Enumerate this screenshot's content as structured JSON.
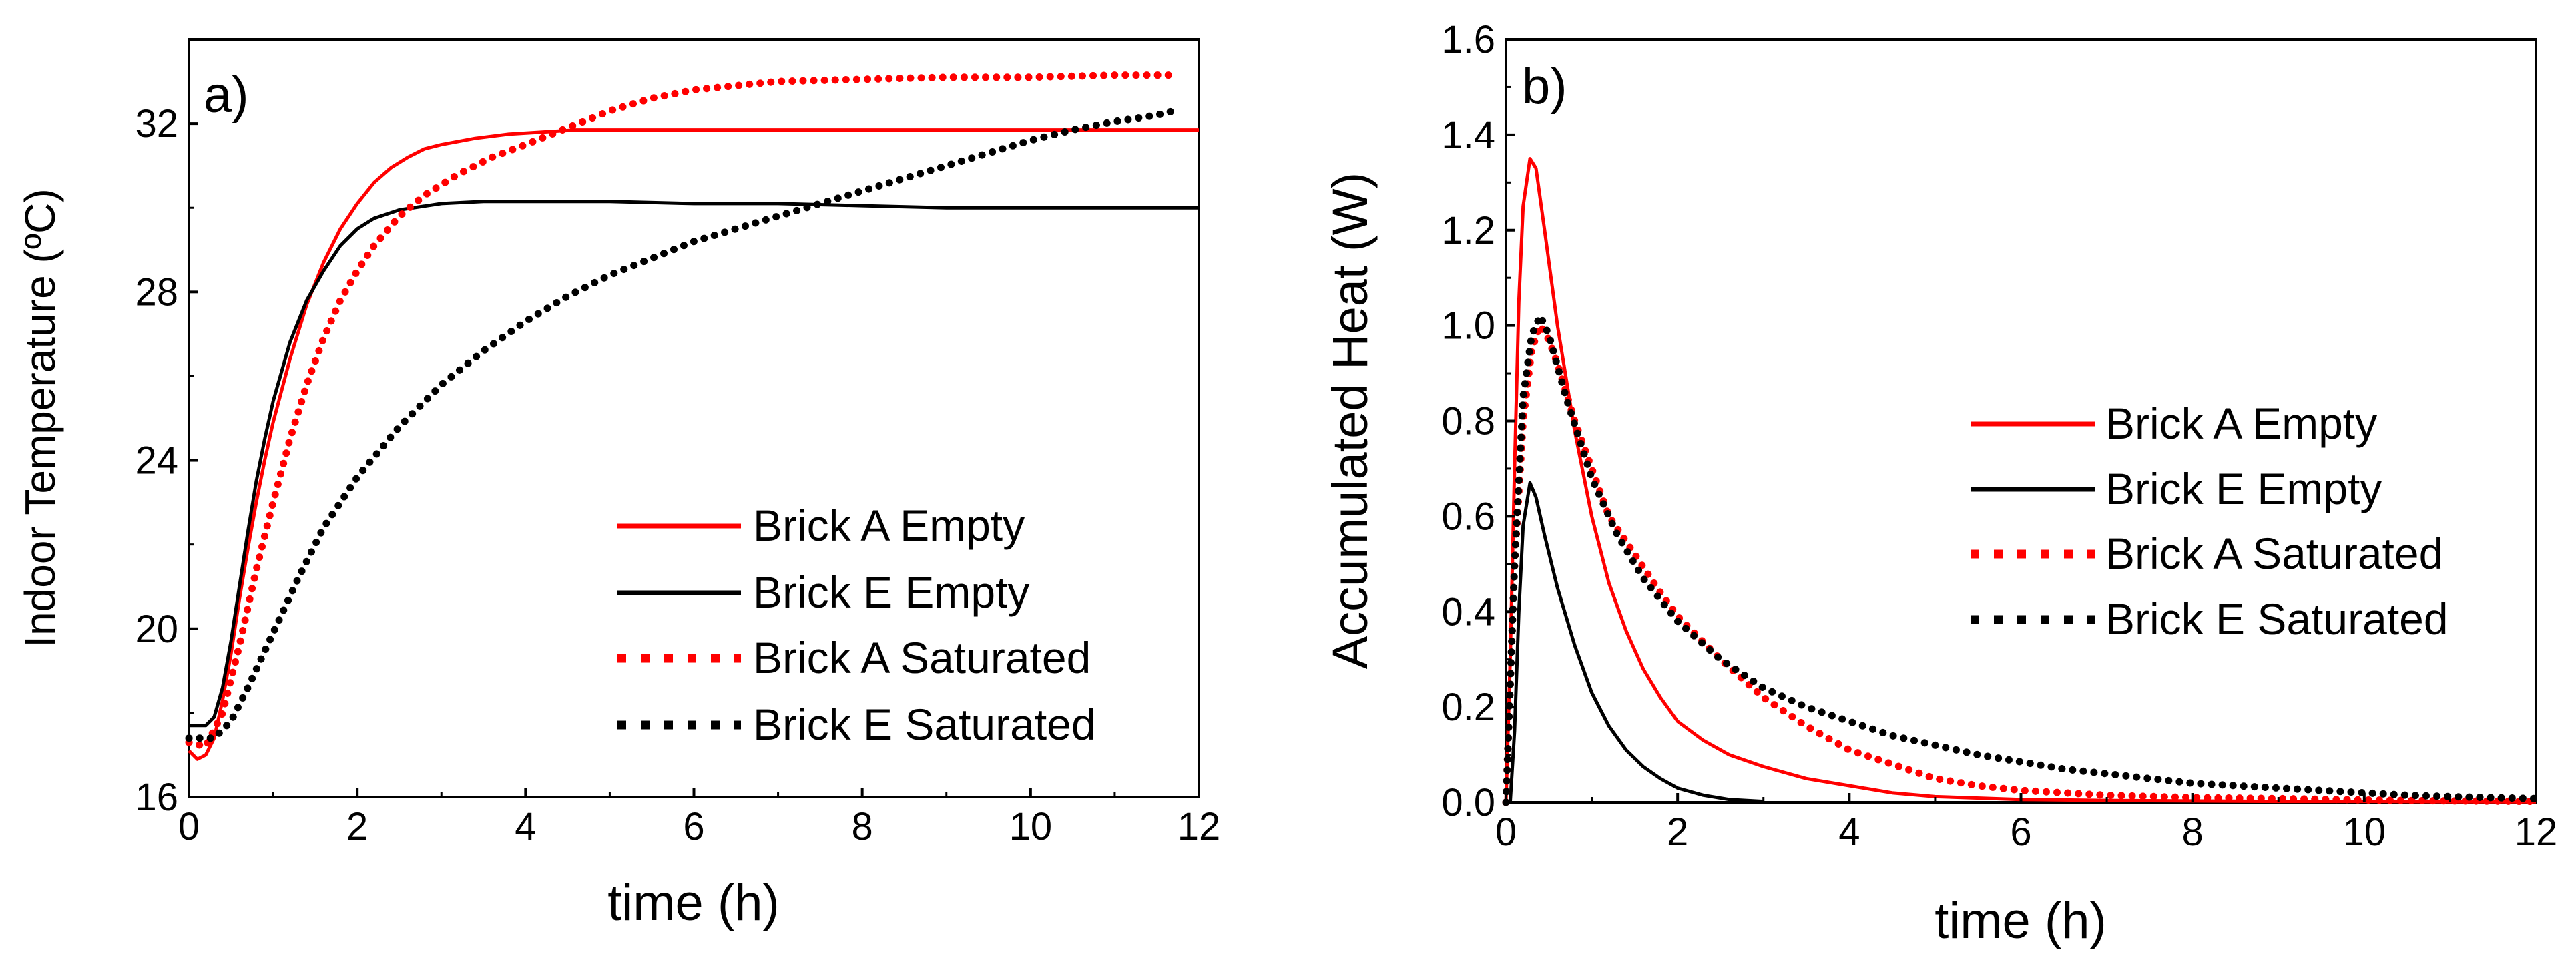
{
  "chart_data": [
    {
      "type": "line",
      "panel_label": "a)",
      "xlabel": "time (h)",
      "ylabel": "Indoor Temperature (ºC)",
      "xlim": [
        0,
        12
      ],
      "ylim": [
        16,
        34
      ],
      "xticks": [
        0,
        2,
        4,
        6,
        8,
        10,
        12
      ],
      "yticks": [
        16,
        20,
        24,
        28,
        32
      ],
      "grid": false,
      "legend_position": "bottom-right",
      "series": [
        {
          "name": "Brick A Empty",
          "color": "#ff0000",
          "style": "solid",
          "points": [
            [
              0,
              17.1
            ],
            [
              0.1,
              16.9
            ],
            [
              0.2,
              17.0
            ],
            [
              0.3,
              17.4
            ],
            [
              0.4,
              18.3
            ],
            [
              0.5,
              19.4
            ],
            [
              0.6,
              20.7
            ],
            [
              0.7,
              21.9
            ],
            [
              0.8,
              23.0
            ],
            [
              0.9,
              24.0
            ],
            [
              1.0,
              24.9
            ],
            [
              1.2,
              26.4
            ],
            [
              1.4,
              27.7
            ],
            [
              1.6,
              28.7
            ],
            [
              1.8,
              29.5
            ],
            [
              2.0,
              30.1
            ],
            [
              2.2,
              30.6
            ],
            [
              2.4,
              30.95
            ],
            [
              2.6,
              31.2
            ],
            [
              2.8,
              31.4
            ],
            [
              3.0,
              31.5
            ],
            [
              3.4,
              31.65
            ],
            [
              3.8,
              31.75
            ],
            [
              4.2,
              31.8
            ],
            [
              4.6,
              31.85
            ],
            [
              5.0,
              31.85
            ],
            [
              6.0,
              31.85
            ],
            [
              7.0,
              31.85
            ],
            [
              8.0,
              31.85
            ],
            [
              9.0,
              31.85
            ],
            [
              10.0,
              31.85
            ],
            [
              11.0,
              31.85
            ],
            [
              12.0,
              31.85
            ]
          ]
        },
        {
          "name": "Brick E Empty",
          "color": "#000000",
          "style": "solid",
          "points": [
            [
              0,
              17.7
            ],
            [
              0.2,
              17.7
            ],
            [
              0.3,
              17.9
            ],
            [
              0.4,
              18.6
            ],
            [
              0.5,
              19.7
            ],
            [
              0.6,
              21.0
            ],
            [
              0.7,
              22.3
            ],
            [
              0.8,
              23.5
            ],
            [
              0.9,
              24.5
            ],
            [
              1.0,
              25.4
            ],
            [
              1.2,
              26.8
            ],
            [
              1.4,
              27.8
            ],
            [
              1.6,
              28.5
            ],
            [
              1.8,
              29.1
            ],
            [
              2.0,
              29.5
            ],
            [
              2.2,
              29.75
            ],
            [
              2.5,
              29.95
            ],
            [
              3.0,
              30.1
            ],
            [
              3.5,
              30.15
            ],
            [
              4.0,
              30.15
            ],
            [
              5.0,
              30.15
            ],
            [
              6.0,
              30.1
            ],
            [
              7.0,
              30.1
            ],
            [
              8.0,
              30.05
            ],
            [
              9.0,
              30.0
            ],
            [
              10.0,
              30.0
            ],
            [
              11.0,
              30.0
            ],
            [
              12.0,
              30.0
            ]
          ]
        },
        {
          "name": "Brick A Saturated",
          "color": "#ff0000",
          "style": "dotted",
          "points": [
            [
              0,
              17.3
            ],
            [
              0.2,
              17.2
            ],
            [
              0.4,
              18.0
            ],
            [
              0.6,
              19.6
            ],
            [
              0.8,
              21.4
            ],
            [
              1.0,
              23.0
            ],
            [
              1.2,
              24.5
            ],
            [
              1.4,
              25.8
            ],
            [
              1.6,
              26.9
            ],
            [
              1.8,
              27.8
            ],
            [
              2.0,
              28.5
            ],
            [
              2.2,
              29.1
            ],
            [
              2.5,
              29.8
            ],
            [
              2.8,
              30.3
            ],
            [
              3.2,
              30.8
            ],
            [
              3.6,
              31.2
            ],
            [
              4.0,
              31.5
            ],
            [
              4.5,
              31.9
            ],
            [
              5.0,
              32.3
            ],
            [
              5.5,
              32.6
            ],
            [
              6.0,
              32.8
            ],
            [
              6.5,
              32.9
            ],
            [
              7.0,
              33.0
            ],
            [
              8.0,
              33.05
            ],
            [
              9.0,
              33.1
            ],
            [
              10.0,
              33.1
            ],
            [
              11.0,
              33.15
            ],
            [
              11.7,
              33.15
            ]
          ]
        },
        {
          "name": "Brick E Saturated",
          "color": "#000000",
          "style": "dotted",
          "points": [
            [
              0,
              17.4
            ],
            [
              0.3,
              17.4
            ],
            [
              0.5,
              17.8
            ],
            [
              0.7,
              18.6
            ],
            [
              1.0,
              19.9
            ],
            [
              1.3,
              21.2
            ],
            [
              1.6,
              22.4
            ],
            [
              2.0,
              23.6
            ],
            [
              2.5,
              24.8
            ],
            [
              3.0,
              25.8
            ],
            [
              3.5,
              26.6
            ],
            [
              4.0,
              27.3
            ],
            [
              4.5,
              27.9
            ],
            [
              5.0,
              28.4
            ],
            [
              5.5,
              28.8
            ],
            [
              6.0,
              29.2
            ],
            [
              6.5,
              29.5
            ],
            [
              7.0,
              29.8
            ],
            [
              7.5,
              30.1
            ],
            [
              8.0,
              30.4
            ],
            [
              8.5,
              30.7
            ],
            [
              9.0,
              31.0
            ],
            [
              9.5,
              31.3
            ],
            [
              10.0,
              31.6
            ],
            [
              10.5,
              31.85
            ],
            [
              11.0,
              32.05
            ],
            [
              11.5,
              32.2
            ],
            [
              11.7,
              32.3
            ]
          ]
        }
      ]
    },
    {
      "type": "line",
      "panel_label": "b)",
      "xlabel": "time (h)",
      "ylabel": "Accumulated Heat (W)",
      "xlim": [
        0,
        12
      ],
      "ylim": [
        0,
        1.6
      ],
      "xticks": [
        0,
        2,
        4,
        6,
        8,
        10,
        12
      ],
      "yticks": [
        0.0,
        0.2,
        0.4,
        0.6,
        0.8,
        1.0,
        1.2,
        1.4,
        1.6
      ],
      "grid": false,
      "legend_position": "right-center",
      "series": [
        {
          "name": "Brick A Empty",
          "color": "#ff0000",
          "style": "solid",
          "points": [
            [
              0,
              0.0
            ],
            [
              0.05,
              0.3
            ],
            [
              0.1,
              0.7
            ],
            [
              0.15,
              1.05
            ],
            [
              0.2,
              1.25
            ],
            [
              0.28,
              1.35
            ],
            [
              0.35,
              1.33
            ],
            [
              0.45,
              1.2
            ],
            [
              0.6,
              1.0
            ],
            [
              0.8,
              0.78
            ],
            [
              1.0,
              0.6
            ],
            [
              1.2,
              0.46
            ],
            [
              1.4,
              0.36
            ],
            [
              1.6,
              0.28
            ],
            [
              1.8,
              0.22
            ],
            [
              2.0,
              0.17
            ],
            [
              2.3,
              0.13
            ],
            [
              2.6,
              0.1
            ],
            [
              3.0,
              0.075
            ],
            [
              3.5,
              0.05
            ],
            [
              4.0,
              0.035
            ],
            [
              4.5,
              0.02
            ],
            [
              5.0,
              0.012
            ],
            [
              6.0,
              0.006
            ],
            [
              7.0,
              0.004
            ],
            [
              8.0,
              0.003
            ],
            [
              9.0,
              0.002
            ],
            [
              10.0,
              0.002
            ],
            [
              11.0,
              0.001
            ],
            [
              12.0,
              0.001
            ]
          ]
        },
        {
          "name": "Brick E Empty",
          "color": "#000000",
          "style": "solid",
          "points": [
            [
              0.05,
              0.0
            ],
            [
              0.1,
              0.15
            ],
            [
              0.15,
              0.4
            ],
            [
              0.2,
              0.58
            ],
            [
              0.28,
              0.67
            ],
            [
              0.35,
              0.64
            ],
            [
              0.45,
              0.56
            ],
            [
              0.6,
              0.45
            ],
            [
              0.8,
              0.33
            ],
            [
              1.0,
              0.23
            ],
            [
              1.2,
              0.16
            ],
            [
              1.4,
              0.11
            ],
            [
              1.6,
              0.075
            ],
            [
              1.8,
              0.05
            ],
            [
              2.0,
              0.03
            ],
            [
              2.3,
              0.015
            ],
            [
              2.6,
              0.006
            ],
            [
              3.0,
              0.002
            ]
          ]
        },
        {
          "name": "Brick A Saturated",
          "color": "#ff0000",
          "style": "dotted",
          "points": [
            [
              0,
              0.0
            ],
            [
              0.05,
              0.25
            ],
            [
              0.1,
              0.5
            ],
            [
              0.2,
              0.8
            ],
            [
              0.3,
              0.95
            ],
            [
              0.4,
              1.0
            ],
            [
              0.5,
              0.97
            ],
            [
              0.6,
              0.92
            ],
            [
              0.8,
              0.8
            ],
            [
              1.0,
              0.7
            ],
            [
              1.2,
              0.6
            ],
            [
              1.5,
              0.52
            ],
            [
              1.8,
              0.44
            ],
            [
              2.0,
              0.39
            ],
            [
              2.5,
              0.3
            ],
            [
              3.0,
              0.22
            ],
            [
              3.5,
              0.16
            ],
            [
              4.0,
              0.11
            ],
            [
              4.5,
              0.08
            ],
            [
              5.0,
              0.05
            ],
            [
              5.5,
              0.035
            ],
            [
              6.0,
              0.025
            ],
            [
              7.0,
              0.015
            ],
            [
              8.0,
              0.01
            ],
            [
              9.0,
              0.008
            ],
            [
              10.0,
              0.005
            ],
            [
              11.0,
              0.003
            ],
            [
              12.0,
              0.002
            ]
          ]
        },
        {
          "name": "Brick E Saturated",
          "color": "#000000",
          "style": "dotted",
          "points": [
            [
              0,
              0.0
            ],
            [
              0.1,
              0.5
            ],
            [
              0.2,
              0.85
            ],
            [
              0.3,
              0.98
            ],
            [
              0.4,
              1.02
            ],
            [
              0.5,
              0.98
            ],
            [
              0.7,
              0.85
            ],
            [
              1.0,
              0.68
            ],
            [
              1.3,
              0.56
            ],
            [
              1.6,
              0.47
            ],
            [
              2.0,
              0.38
            ],
            [
              2.5,
              0.3
            ],
            [
              3.0,
              0.24
            ],
            [
              3.5,
              0.2
            ],
            [
              4.0,
              0.17
            ],
            [
              4.5,
              0.14
            ],
            [
              5.0,
              0.12
            ],
            [
              5.5,
              0.1
            ],
            [
              6.0,
              0.085
            ],
            [
              6.5,
              0.07
            ],
            [
              7.0,
              0.06
            ],
            [
              7.5,
              0.05
            ],
            [
              8.0,
              0.04
            ],
            [
              8.5,
              0.035
            ],
            [
              9.0,
              0.03
            ],
            [
              9.5,
              0.025
            ],
            [
              10.0,
              0.02
            ],
            [
              10.5,
              0.015
            ],
            [
              11.0,
              0.012
            ],
            [
              11.5,
              0.01
            ],
            [
              12.0,
              0.008
            ]
          ]
        }
      ]
    }
  ]
}
